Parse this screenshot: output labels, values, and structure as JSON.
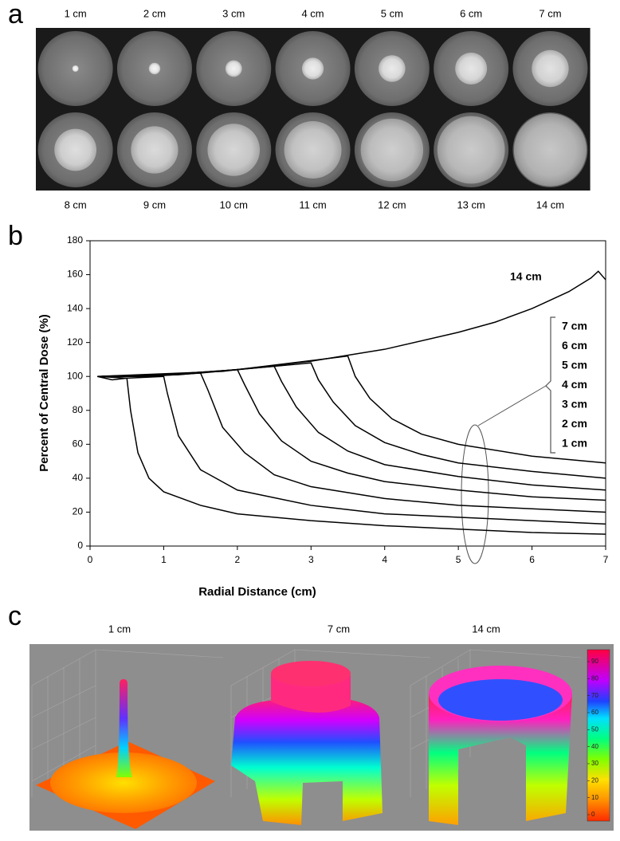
{
  "panel_labels": [
    "a",
    "b",
    "c"
  ],
  "panel_a": {
    "top_labels": [
      "1 cm",
      "2 cm",
      "3 cm",
      "4 cm",
      "5 cm",
      "6 cm",
      "7 cm"
    ],
    "bottom_labels": [
      "8 cm",
      "9 cm",
      "10 cm",
      "11 cm",
      "12 cm",
      "13 cm",
      "14 cm"
    ]
  },
  "chart_data": {
    "type": "line",
    "xlabel": "Radial Distance (cm)",
    "ylabel": "Percent of Central Dose (%)",
    "xlim": [
      0,
      7
    ],
    "ylim": [
      0,
      180
    ],
    "xticks": [
      0,
      1,
      2,
      3,
      4,
      5,
      6,
      7
    ],
    "yticks": [
      0,
      20,
      40,
      60,
      80,
      100,
      120,
      140,
      160,
      180
    ],
    "series": [
      {
        "name": "1 cm",
        "color": "#000000",
        "x": [
          0.1,
          0.3,
          0.5,
          0.55,
          0.65,
          0.8,
          1.0,
          1.5,
          2,
          3,
          4,
          5,
          6,
          7
        ],
        "values": [
          100,
          98,
          99,
          80,
          55,
          40,
          32,
          24,
          19,
          15,
          12,
          10,
          8,
          7
        ]
      },
      {
        "name": "2 cm",
        "color": "#000000",
        "x": [
          0.1,
          0.5,
          1.0,
          1.05,
          1.2,
          1.5,
          2,
          3,
          4,
          5,
          6,
          7
        ],
        "values": [
          100,
          99,
          100,
          90,
          65,
          45,
          33,
          24,
          19,
          17,
          15,
          13
        ]
      },
      {
        "name": "3 cm",
        "color": "#000000",
        "x": [
          0.1,
          0.8,
          1.5,
          1.6,
          1.8,
          2.1,
          2.5,
          3,
          4,
          5,
          6,
          7
        ],
        "values": [
          100,
          100,
          102,
          92,
          70,
          55,
          42,
          35,
          28,
          24,
          22,
          20
        ]
      },
      {
        "name": "4 cm",
        "color": "#000000",
        "x": [
          0.1,
          1,
          2,
          2.1,
          2.3,
          2.6,
          3,
          3.5,
          4,
          5,
          6,
          7
        ],
        "values": [
          100,
          101,
          104,
          95,
          78,
          62,
          50,
          43,
          38,
          33,
          29,
          27
        ]
      },
      {
        "name": "5 cm",
        "color": "#000000",
        "x": [
          0.1,
          1.2,
          2.5,
          2.6,
          2.8,
          3.1,
          3.5,
          4,
          5,
          6,
          7
        ],
        "values": [
          100,
          101,
          106,
          97,
          82,
          67,
          56,
          48,
          41,
          36,
          33
        ]
      },
      {
        "name": "6 cm",
        "color": "#000000",
        "x": [
          0.1,
          1.5,
          3,
          3.1,
          3.3,
          3.6,
          4,
          4.5,
          5,
          6,
          7
        ],
        "values": [
          100,
          102,
          108,
          98,
          85,
          71,
          61,
          54,
          49,
          44,
          40
        ]
      },
      {
        "name": "7 cm",
        "color": "#000000",
        "x": [
          0.1,
          1.8,
          3.5,
          3.6,
          3.8,
          4.1,
          4.5,
          5,
          6,
          7
        ],
        "values": [
          100,
          103,
          112,
          100,
          87,
          75,
          66,
          60,
          53,
          49
        ]
      },
      {
        "name": "14 cm",
        "color": "#000000",
        "x": [
          0.1,
          1,
          2,
          3,
          4,
          5,
          5.5,
          6,
          6.5,
          6.8,
          6.9,
          7
        ],
        "values": [
          100,
          101,
          104,
          109,
          116,
          126,
          132,
          140,
          150,
          158,
          162,
          157
        ]
      }
    ]
  },
  "panel_c": {
    "labels": [
      "1 cm",
      "7 cm",
      "14 cm"
    ],
    "colorbar_ticks": [
      0,
      10,
      20,
      30,
      40,
      50,
      60,
      70,
      80,
      90
    ]
  }
}
